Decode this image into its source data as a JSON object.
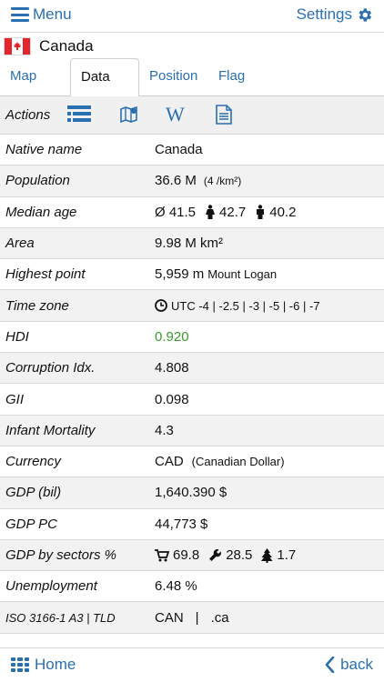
{
  "header": {
    "menu_label": "Menu",
    "settings_label": "Settings"
  },
  "country": {
    "name": "Canada"
  },
  "tabs": [
    {
      "label": "Map"
    },
    {
      "label": "Data"
    },
    {
      "label": "Position"
    },
    {
      "label": "Flag"
    }
  ],
  "actions": {
    "label": "Actions",
    "wiki_glyph": "W"
  },
  "rows": {
    "native_name": {
      "label": "Native name",
      "value": "Canada"
    },
    "population": {
      "label": "Population",
      "value": "36.6 M",
      "density": "(4 /km²)"
    },
    "median_age": {
      "label": "Median age",
      "total": "Ø 41.5",
      "female": "42.7",
      "male": "40.2"
    },
    "area": {
      "label": "Area",
      "value": "9.98 M km²"
    },
    "highest_point": {
      "label": "Highest point",
      "value": "5,959 m",
      "name": "Mount Logan"
    },
    "time_zone": {
      "label": "Time zone",
      "value": "UTC -4 | -2.5 | -3 | -5 | -6 | -7"
    },
    "hdi": {
      "label": "HDI",
      "value": "0.920"
    },
    "corruption": {
      "label": "Corruption Idx.",
      "value": "4.808"
    },
    "gii": {
      "label": "GII",
      "value": "0.098"
    },
    "infant_mortality": {
      "label": "Infant Mortality",
      "value": "4.3"
    },
    "currency": {
      "label": "Currency",
      "value": "CAD",
      "name": "(Canadian Dollar)"
    },
    "gdp_bil": {
      "label": "GDP (bil)",
      "value": "1,640.390 $"
    },
    "gdp_pc": {
      "label": "GDP PC",
      "value": "44,773 $"
    },
    "gdp_sectors": {
      "label": "GDP by sectors %",
      "services": "69.8",
      "industry": "28.5",
      "agriculture": "1.7"
    },
    "unemployment": {
      "label": "Unemployment",
      "value": "6.48 %"
    },
    "iso": {
      "label": "ISO 3166-1 A3 | TLD",
      "code": "CAN",
      "separator": "|",
      "tld": ".ca"
    }
  },
  "footer": {
    "home_label": "Home",
    "back_label": "back"
  },
  "colors": {
    "accent": "#2a6fb0",
    "hdi_green": "#3a9a2e",
    "flag_red": "#e3262e"
  }
}
